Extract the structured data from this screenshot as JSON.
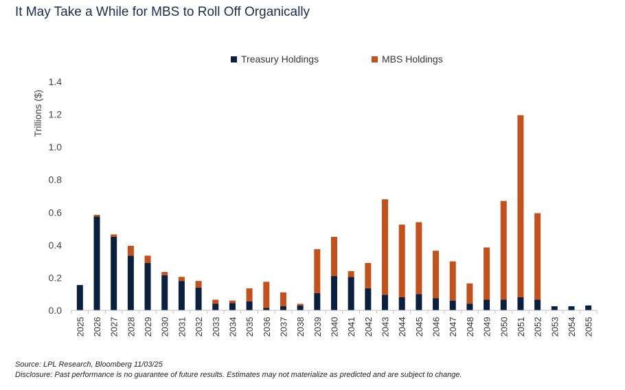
{
  "colors": {
    "treasury": "#0b1f3f",
    "mbs": "#c4501c",
    "title": "#1d2a4a"
  },
  "chart_data": {
    "type": "bar",
    "stacked": true,
    "title": "It May Take a While for MBS to Roll Off Organically",
    "ylabel": "Trillions ($)",
    "xlabel": "",
    "ylim": [
      0,
      1.4
    ],
    "yticks": [
      "0.0",
      "0.2",
      "0.4",
      "0.6",
      "0.8",
      "1.0",
      "1.2",
      "1.4"
    ],
    "ytick_values": [
      0,
      0.2,
      0.4,
      0.6,
      0.8,
      1.0,
      1.2,
      1.4
    ],
    "legend_position": "top-center",
    "grid": false,
    "categories": [
      "2025",
      "2026",
      "2027",
      "2028",
      "2029",
      "2030",
      "2031",
      "2032",
      "2033",
      "2034",
      "2035",
      "2036",
      "2037",
      "2038",
      "2039",
      "2040",
      "2041",
      "2042",
      "2043",
      "2044",
      "2045",
      "2046",
      "2047",
      "2048",
      "2049",
      "2050",
      "2051",
      "2052",
      "2053",
      "2054",
      "2055"
    ],
    "series": [
      {
        "name": "Treasury Holdings",
        "values": [
          0.155,
          0.575,
          0.45,
          0.335,
          0.29,
          0.215,
          0.18,
          0.14,
          0.04,
          0.045,
          0.055,
          0.015,
          0.025,
          0.03,
          0.105,
          0.21,
          0.205,
          0.135,
          0.095,
          0.08,
          0.1,
          0.075,
          0.06,
          0.04,
          0.065,
          0.065,
          0.08,
          0.065,
          0.025,
          0.025,
          0.03
        ]
      },
      {
        "name": "MBS Holdings",
        "values": [
          0.0,
          0.01,
          0.015,
          0.06,
          0.045,
          0.02,
          0.025,
          0.04,
          0.025,
          0.015,
          0.08,
          0.16,
          0.085,
          0.01,
          0.27,
          0.24,
          0.035,
          0.155,
          0.585,
          0.445,
          0.44,
          0.29,
          0.24,
          0.125,
          0.32,
          0.605,
          1.115,
          0.53,
          0.0,
          0.0,
          0.0
        ]
      }
    ]
  },
  "footnotes": {
    "source": "Source: LPL Research, Bloomberg 11/03/25",
    "disclosure": "Disclosure: Past performance is no guarantee of future results. Estimates may not materialize as predicted and are subject to change."
  }
}
